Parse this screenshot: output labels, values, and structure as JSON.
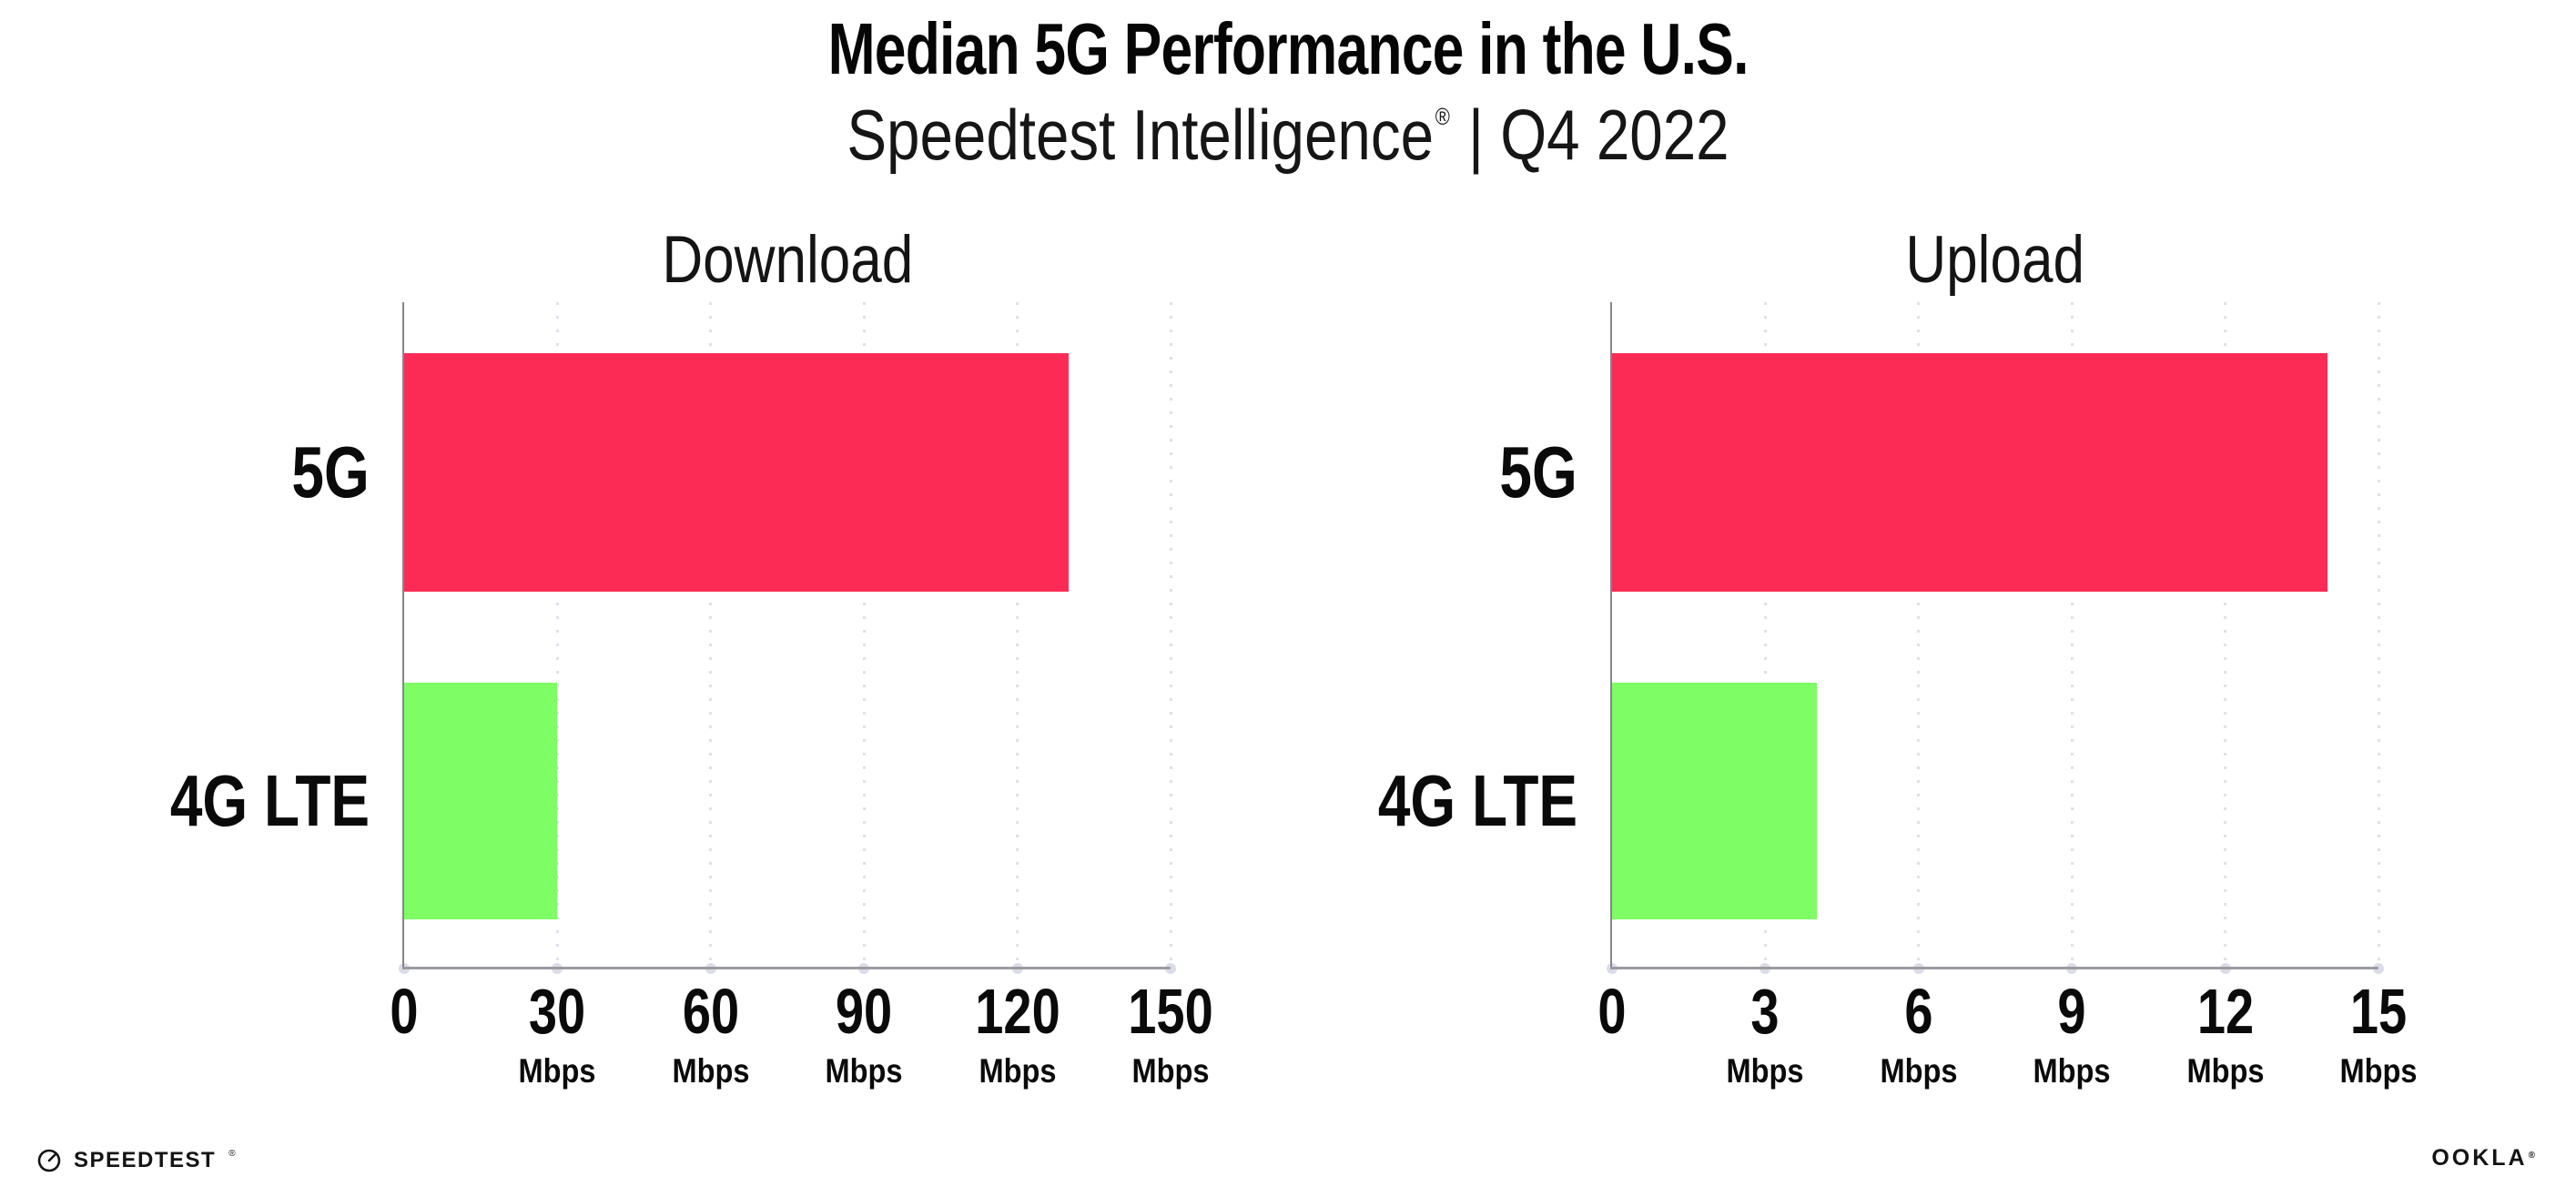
{
  "header": {
    "title": "Median 5G Performance in the U.S.",
    "subtitle_brand": "Speedtest Intelligence",
    "subtitle_reg": "®",
    "subtitle_rest": "| Q4 2022"
  },
  "chart_data": [
    {
      "type": "bar",
      "orientation": "horizontal",
      "title": "Download",
      "categories": [
        "5G",
        "4G LTE"
      ],
      "values": [
        130,
        30
      ],
      "unit": "Mbps",
      "xlim": [
        0,
        150
      ],
      "xticks": [
        0,
        30,
        60,
        90,
        120,
        150
      ],
      "bar_colors": [
        "#fc2b56",
        "#7efd65"
      ],
      "grid": "dotted-vertical",
      "legend": "none"
    },
    {
      "type": "bar",
      "orientation": "horizontal",
      "title": "Upload",
      "categories": [
        "5G",
        "4G LTE"
      ],
      "values": [
        14,
        4
      ],
      "unit": "Mbps",
      "xlim": [
        0,
        15
      ],
      "xticks": [
        0,
        3,
        6,
        9,
        12,
        15
      ],
      "bar_colors": [
        "#fc2b56",
        "#7efd65"
      ],
      "grid": "dotted-vertical",
      "legend": "none"
    }
  ],
  "colors": {
    "bar_5g": "#fc2b56",
    "bar_4g_lte": "#7efd65",
    "axis": "#9b9ba1",
    "gridline_dots": "#dfe0eb",
    "text": "#0c0c0c"
  },
  "footer": {
    "speedtest_label": "SPEEDTEST",
    "speedtest_reg": "®",
    "ookla_label": "OOKLA",
    "ookla_reg": "®"
  }
}
